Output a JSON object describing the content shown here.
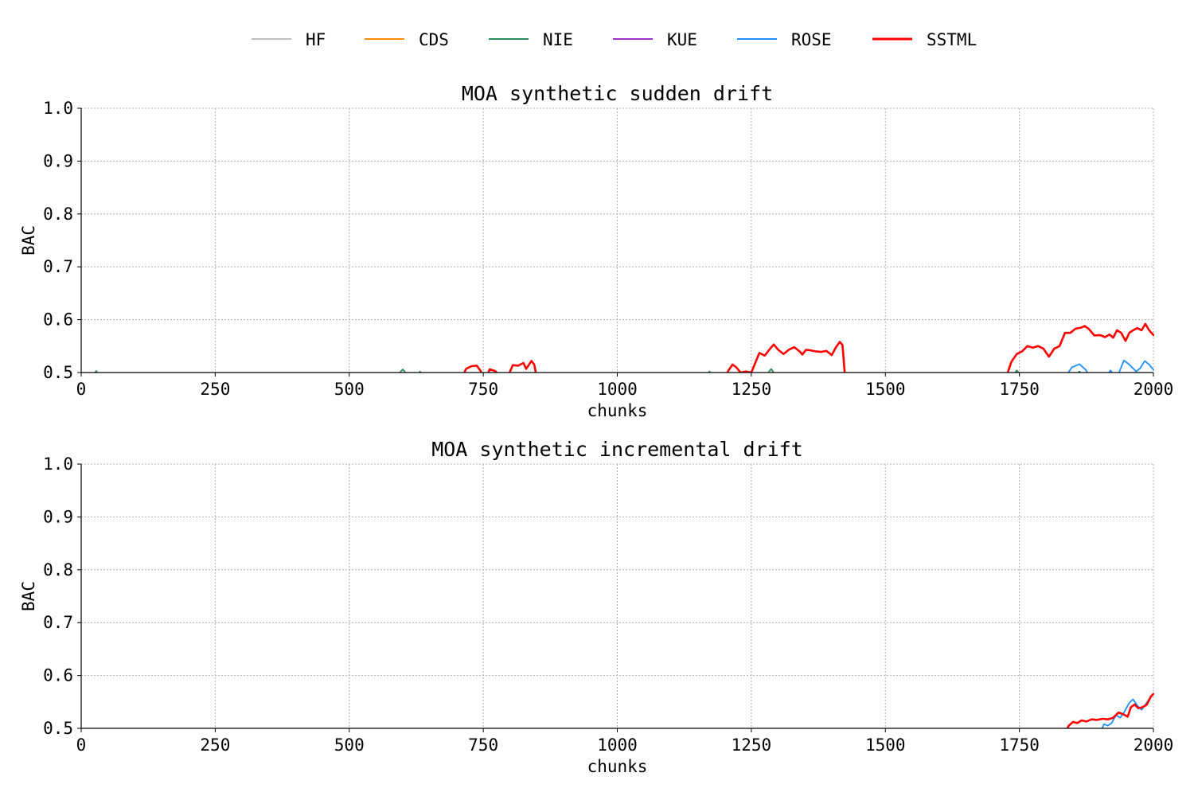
{
  "chart_data": {
    "legend": {
      "placement": "top-center",
      "entries": [
        {
          "name": "HF",
          "color": "#bfbfbf"
        },
        {
          "name": "CDS",
          "color": "#ff8c00"
        },
        {
          "name": "NIE",
          "color": "#2e8b57"
        },
        {
          "name": "KUE",
          "color": "#9932cc"
        },
        {
          "name": "ROSE",
          "color": "#1e90ff"
        },
        {
          "name": "SSTML",
          "color": "#ff0000"
        }
      ]
    },
    "charts": [
      {
        "type": "line",
        "title": "MOA synthetic sudden drift",
        "xlabel": "chunks",
        "ylabel": "BAC",
        "xlim": [
          0,
          2000
        ],
        "ylim": [
          0.5,
          1.0
        ],
        "xticks": [
          "0",
          "250",
          "500",
          "750",
          "1000",
          "1250",
          "1500",
          "1750",
          "2000"
        ],
        "yticks": [
          "0.5",
          "0.6",
          "0.7",
          "0.8",
          "0.9",
          "1.0"
        ],
        "grid": true,
        "series": [
          {
            "name": "NIE",
            "color": "#2e8b57",
            "points": [
              [
                20,
                0.49
              ],
              [
                28,
                0.503
              ],
              [
                36,
                0.49
              ],
              [
                585,
                0.49
              ],
              [
                600,
                0.506
              ],
              [
                612,
                0.49
              ],
              [
                622,
                0.49
              ],
              [
                632,
                0.502
              ],
              [
                642,
                0.49
              ],
              [
                1162,
                0.49
              ],
              [
                1172,
                0.502
              ],
              [
                1182,
                0.49
              ],
              [
                1275,
                0.49
              ],
              [
                1287,
                0.507
              ],
              [
                1298,
                0.49
              ],
              [
                1735,
                0.49
              ],
              [
                1745,
                0.504
              ],
              [
                1756,
                0.49
              ],
              [
                1850,
                0.49
              ],
              [
                1862,
                0.502
              ],
              [
                1874,
                0.49
              ]
            ]
          },
          {
            "name": "ROSE",
            "color": "#1e90ff",
            "points": [
              [
                1835,
                0.49
              ],
              [
                1848,
                0.51
              ],
              [
                1862,
                0.516
              ],
              [
                1874,
                0.505
              ],
              [
                1882,
                0.49
              ],
              [
                1910,
                0.49
              ],
              [
                1920,
                0.504
              ],
              [
                1930,
                0.49
              ],
              [
                1936,
                0.5
              ],
              [
                1945,
                0.523
              ],
              [
                1955,
                0.515
              ],
              [
                1968,
                0.502
              ],
              [
                1975,
                0.508
              ],
              [
                1984,
                0.522
              ],
              [
                1993,
                0.514
              ],
              [
                2000,
                0.505
              ]
            ]
          },
          {
            "name": "SSTML",
            "color": "#ff0000",
            "points": [
              [
                710,
                0.49
              ],
              [
                718,
                0.507
              ],
              [
                728,
                0.512
              ],
              [
                738,
                0.513
              ],
              [
                745,
                0.503
              ],
              [
                750,
                0.49
              ],
              [
                755,
                0.49
              ],
              [
                762,
                0.506
              ],
              [
                772,
                0.503
              ],
              [
                785,
                0.49
              ],
              [
                795,
                0.49
              ],
              [
                805,
                0.514
              ],
              [
                815,
                0.513
              ],
              [
                825,
                0.518
              ],
              [
                830,
                0.507
              ],
              [
                840,
                0.522
              ],
              [
                845,
                0.515
              ],
              [
                850,
                0.49
              ],
              [
                1200,
                0.49
              ],
              [
                1208,
                0.505
              ],
              [
                1215,
                0.515
              ],
              [
                1222,
                0.51
              ],
              [
                1230,
                0.5
              ],
              [
                1240,
                0.502
              ],
              [
                1250,
                0.5
              ],
              [
                1258,
                0.52
              ],
              [
                1265,
                0.537
              ],
              [
                1275,
                0.532
              ],
              [
                1285,
                0.545
              ],
              [
                1292,
                0.553
              ],
              [
                1300,
                0.543
              ],
              [
                1310,
                0.535
              ],
              [
                1320,
                0.543
              ],
              [
                1330,
                0.548
              ],
              [
                1340,
                0.54
              ],
              [
                1345,
                0.534
              ],
              [
                1352,
                0.543
              ],
              [
                1360,
                0.542
              ],
              [
                1370,
                0.54
              ],
              [
                1380,
                0.539
              ],
              [
                1390,
                0.541
              ],
              [
                1400,
                0.533
              ],
              [
                1408,
                0.548
              ],
              [
                1415,
                0.558
              ],
              [
                1420,
                0.552
              ],
              [
                1425,
                0.49
              ],
              [
                1725,
                0.49
              ],
              [
                1735,
                0.52
              ],
              [
                1745,
                0.535
              ],
              [
                1755,
                0.54
              ],
              [
                1765,
                0.55
              ],
              [
                1775,
                0.547
              ],
              [
                1785,
                0.55
              ],
              [
                1795,
                0.545
              ],
              [
                1805,
                0.53
              ],
              [
                1815,
                0.545
              ],
              [
                1825,
                0.55
              ],
              [
                1835,
                0.575
              ],
              [
                1845,
                0.575
              ],
              [
                1855,
                0.583
              ],
              [
                1865,
                0.585
              ],
              [
                1872,
                0.588
              ],
              [
                1880,
                0.582
              ],
              [
                1890,
                0.57
              ],
              [
                1900,
                0.571
              ],
              [
                1910,
                0.567
              ],
              [
                1918,
                0.572
              ],
              [
                1925,
                0.566
              ],
              [
                1932,
                0.58
              ],
              [
                1940,
                0.575
              ],
              [
                1948,
                0.56
              ],
              [
                1955,
                0.575
              ],
              [
                1962,
                0.58
              ],
              [
                1970,
                0.584
              ],
              [
                1978,
                0.58
              ],
              [
                1985,
                0.592
              ],
              [
                1992,
                0.58
              ],
              [
                2000,
                0.571
              ]
            ]
          }
        ]
      },
      {
        "type": "line",
        "title": "MOA synthetic incremental drift",
        "xlabel": "chunks",
        "ylabel": "BAC",
        "xlim": [
          0,
          2000
        ],
        "ylim": [
          0.5,
          1.0
        ],
        "xticks": [
          "0",
          "250",
          "500",
          "750",
          "1000",
          "1250",
          "1500",
          "1750",
          "2000"
        ],
        "yticks": [
          "0.5",
          "0.6",
          "0.7",
          "0.8",
          "0.9",
          "1.0"
        ],
        "grid": true,
        "series": [
          {
            "name": "ROSE",
            "color": "#1e90ff",
            "points": [
              [
                1900,
                0.49
              ],
              [
                1908,
                0.508
              ],
              [
                1915,
                0.505
              ],
              [
                1922,
                0.51
              ],
              [
                1930,
                0.525
              ],
              [
                1938,
                0.52
              ],
              [
                1945,
                0.53
              ],
              [
                1955,
                0.548
              ],
              [
                1962,
                0.555
              ],
              [
                1970,
                0.543
              ],
              [
                1978,
                0.535
              ],
              [
                1985,
                0.545
              ],
              [
                1992,
                0.555
              ],
              [
                2000,
                0.565
              ]
            ]
          },
          {
            "name": "SSTML",
            "color": "#ff0000",
            "points": [
              [
                1835,
                0.49
              ],
              [
                1842,
                0.505
              ],
              [
                1850,
                0.512
              ],
              [
                1858,
                0.51
              ],
              [
                1866,
                0.515
              ],
              [
                1875,
                0.513
              ],
              [
                1885,
                0.517
              ],
              [
                1895,
                0.516
              ],
              [
                1905,
                0.518
              ],
              [
                1915,
                0.517
              ],
              [
                1925,
                0.52
              ],
              [
                1935,
                0.53
              ],
              [
                1945,
                0.526
              ],
              [
                1952,
                0.522
              ],
              [
                1958,
                0.54
              ],
              [
                1965,
                0.545
              ],
              [
                1972,
                0.538
              ],
              [
                1980,
                0.54
              ],
              [
                1988,
                0.545
              ],
              [
                1995,
                0.56
              ],
              [
                2000,
                0.565
              ]
            ]
          }
        ]
      }
    ]
  }
}
